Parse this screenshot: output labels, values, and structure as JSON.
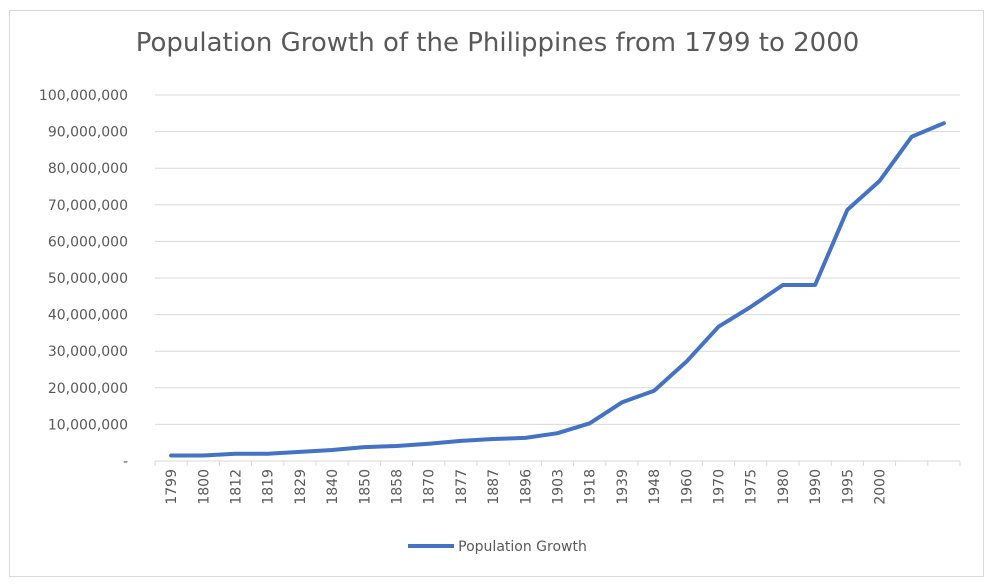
{
  "chart_data": {
    "type": "line",
    "title": "Population Growth of the Philippines from 1799 to 2000",
    "xlabel": "",
    "ylabel": "",
    "categories": [
      "1799",
      "1800",
      "1812",
      "1819",
      "1829",
      "1840",
      "1850",
      "1858",
      "1870",
      "1877",
      "1887",
      "1896",
      "1903",
      "1918",
      "1939",
      "1948",
      "1960",
      "1970",
      "1975",
      "1980",
      "1990",
      "1995",
      "2000",
      "",
      ""
    ],
    "series": [
      {
        "name": "Population Growth",
        "color": "#4472c4",
        "values": [
          1500000,
          1500000,
          2000000,
          2000000,
          2500000,
          3000000,
          3800000,
          4100000,
          4700000,
          5500000,
          6000000,
          6300000,
          7600000,
          10300000,
          16000000,
          19200000,
          27100000,
          36700000,
          42100000,
          48100000,
          48100000,
          68600000,
          76500000,
          88600000,
          92300000
        ]
      }
    ],
    "ylim": [
      0,
      100000000
    ],
    "yticks": [
      {
        "value": 0,
        "label": "-"
      },
      {
        "value": 10000000,
        "label": "10,000,000"
      },
      {
        "value": 20000000,
        "label": "20,000,000"
      },
      {
        "value": 30000000,
        "label": "30,000,000"
      },
      {
        "value": 40000000,
        "label": "40,000,000"
      },
      {
        "value": 50000000,
        "label": "50,000,000"
      },
      {
        "value": 60000000,
        "label": "60,000,000"
      },
      {
        "value": 70000000,
        "label": "70,000,000"
      },
      {
        "value": 80000000,
        "label": "80,000,000"
      },
      {
        "value": 90000000,
        "label": "90,000,000"
      },
      {
        "value": 100000000,
        "label": "100,000,000"
      }
    ],
    "grid": true,
    "legend_position": "bottom"
  }
}
